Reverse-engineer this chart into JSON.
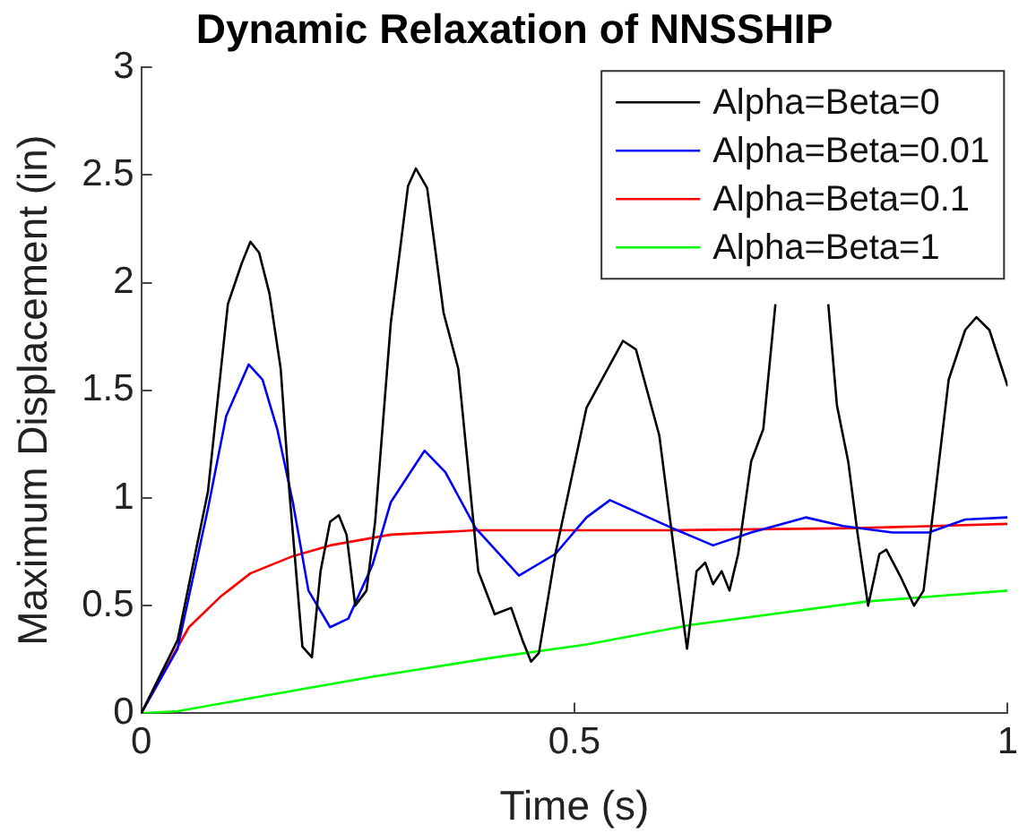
{
  "chart_data": {
    "type": "line",
    "title": "Dynamic Relaxation of NNSSHIP",
    "xlabel": "Time (s)",
    "ylabel": "Maximum Displacement (in)",
    "xlim": [
      0,
      1
    ],
    "xticks": [
      0,
      0.5,
      1
    ],
    "ylim": [
      0,
      3
    ],
    "yticks": [
      0,
      0.5,
      1,
      1.5,
      2,
      2.5,
      3
    ],
    "grid": false,
    "legend": "top right",
    "marker": "none",
    "line_style": "solid",
    "series": [
      {
        "name": "Alpha=Beta=0",
        "color": "#000000",
        "x": [
          0,
          0.042,
          0.077,
          0.1,
          0.116,
          0.126,
          0.136,
          0.148,
          0.161,
          0.171,
          0.186,
          0.197,
          0.207,
          0.218,
          0.228,
          0.237,
          0.247,
          0.26,
          0.27,
          0.288,
          0.308,
          0.317,
          0.33,
          0.349,
          0.366,
          0.389,
          0.408,
          0.427,
          0.44,
          0.45,
          0.459,
          0.478,
          0.514,
          0.556,
          0.571,
          0.598,
          0.619,
          0.63,
          0.641,
          0.651,
          0.66,
          0.67,
          0.679,
          0.689,
          0.704,
          0.718,
          0.732,
          0.76,
          0.793,
          0.803,
          0.816,
          0.827,
          0.839,
          0.852,
          0.86,
          0.877,
          0.892,
          0.903,
          0.915,
          0.932,
          0.951,
          0.964,
          0.979,
          1.0
        ],
        "values": [
          0,
          0.34,
          1.03,
          1.9,
          2.09,
          2.19,
          2.14,
          1.95,
          1.6,
          1.03,
          0.31,
          0.26,
          0.66,
          0.89,
          0.92,
          0.83,
          0.5,
          0.57,
          0.89,
          1.81,
          2.45,
          2.53,
          2.44,
          1.86,
          1.6,
          0.66,
          0.46,
          0.49,
          0.34,
          0.24,
          0.28,
          0.74,
          1.42,
          1.73,
          1.69,
          1.29,
          0.63,
          0.3,
          0.66,
          0.7,
          0.6,
          0.66,
          0.57,
          0.74,
          1.17,
          1.32,
          1.9,
          null,
          1.9,
          1.43,
          1.17,
          0.83,
          0.5,
          0.74,
          0.76,
          0.63,
          0.5,
          0.57,
          0.97,
          1.55,
          1.78,
          1.84,
          1.78,
          1.52
        ]
      },
      {
        "name": "Alpha=Beta=0.01",
        "color": "#0000ff",
        "x": [
          0,
          0.042,
          0.077,
          0.098,
          0.124,
          0.14,
          0.157,
          0.175,
          0.193,
          0.218,
          0.239,
          0.267,
          0.288,
          0.327,
          0.351,
          0.386,
          0.436,
          0.478,
          0.514,
          0.541,
          0.613,
          0.66,
          0.704,
          0.767,
          0.81,
          0.867,
          0.909,
          0.951,
          1.0
        ],
        "values": [
          0,
          0.3,
          0.95,
          1.38,
          1.62,
          1.55,
          1.32,
          0.98,
          0.57,
          0.4,
          0.44,
          0.69,
          0.98,
          1.22,
          1.12,
          0.86,
          0.64,
          0.74,
          0.91,
          0.99,
          0.86,
          0.78,
          0.84,
          0.91,
          0.87,
          0.84,
          0.84,
          0.9,
          0.91
        ]
      },
      {
        "name": "Alpha=Beta=0.1",
        "color": "#ff0000",
        "x": [
          0,
          0.027,
          0.055,
          0.091,
          0.126,
          0.175,
          0.218,
          0.288,
          0.386,
          0.514,
          0.613,
          0.825,
          1.0
        ],
        "values": [
          0,
          0.2,
          0.4,
          0.54,
          0.65,
          0.73,
          0.78,
          0.83,
          0.85,
          0.85,
          0.85,
          0.86,
          0.88
        ]
      },
      {
        "name": "Alpha=Beta=1",
        "color": "#00ff00",
        "x": [
          0,
          0.042,
          0.126,
          0.267,
          0.408,
          0.514,
          0.634,
          0.839,
          1.0
        ],
        "values": [
          0,
          0.01,
          0.07,
          0.17,
          0.26,
          0.32,
          0.41,
          0.52,
          0.57
        ]
      }
    ]
  }
}
